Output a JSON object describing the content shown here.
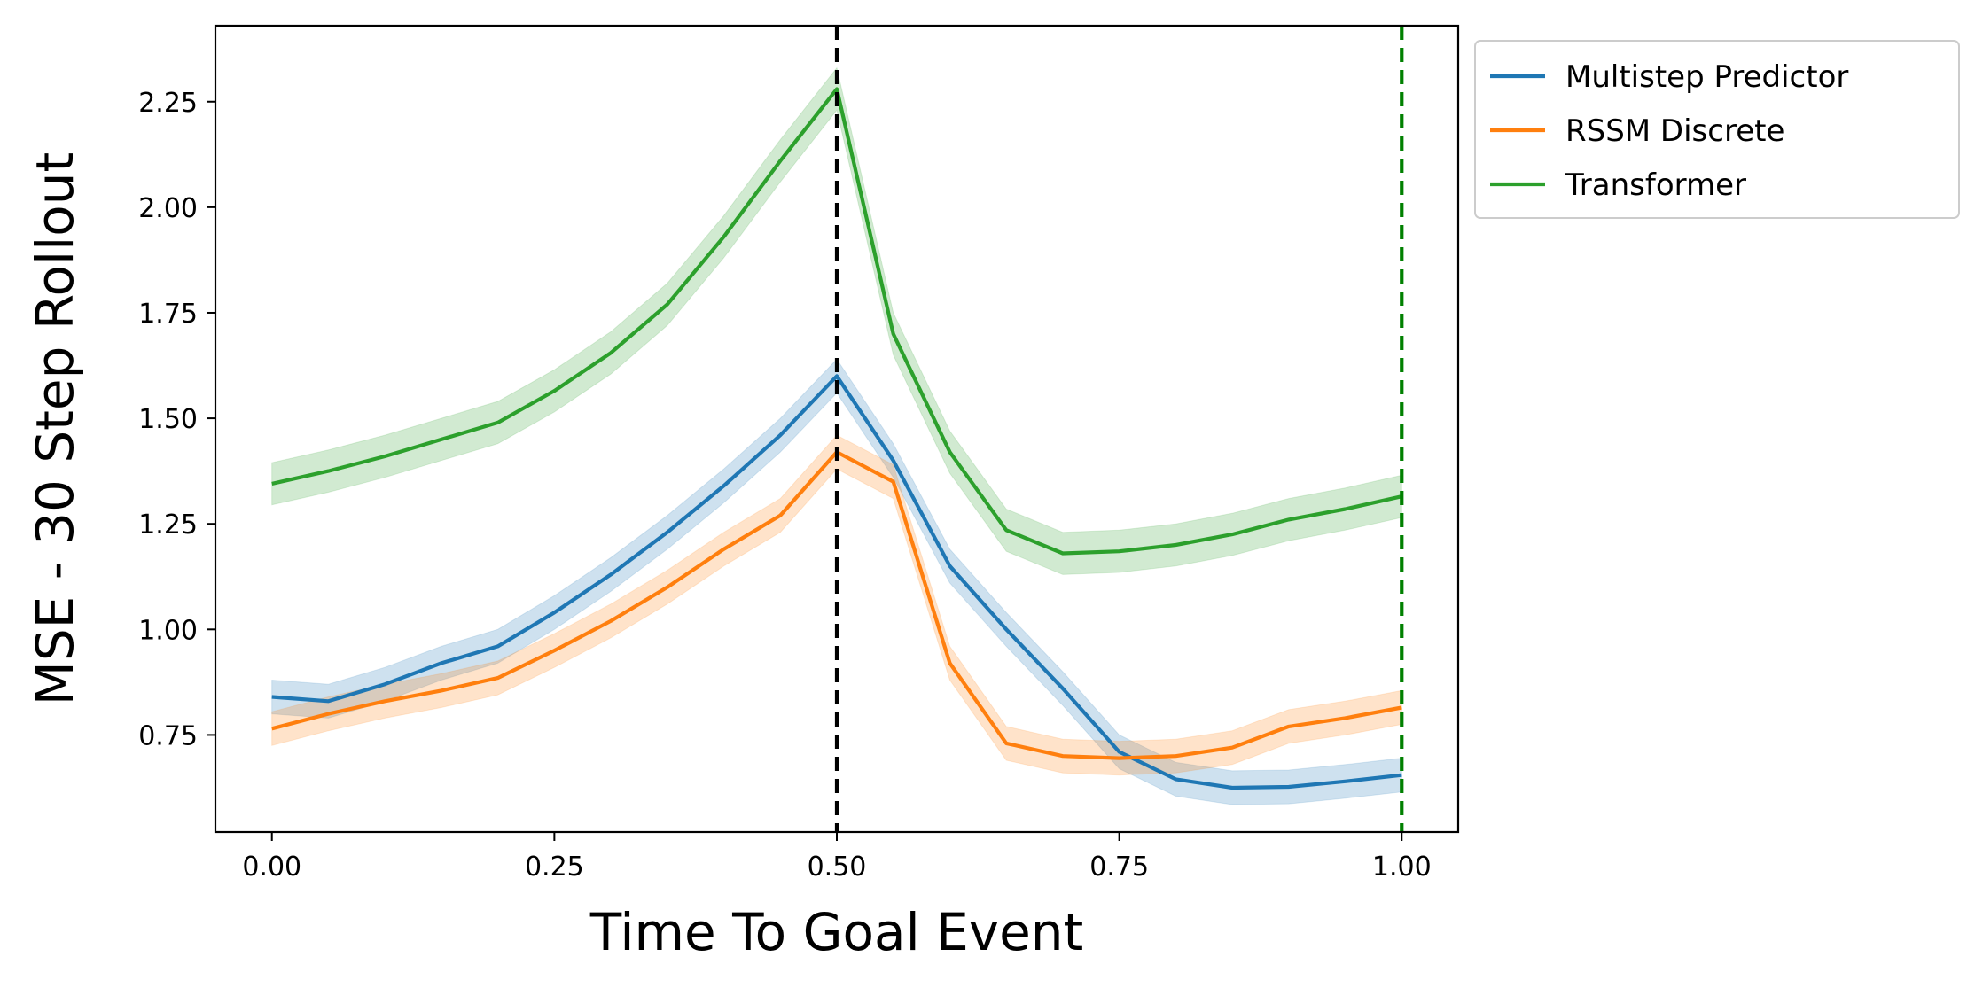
{
  "chart_data": {
    "type": "line",
    "title": "",
    "xlabel": "Time To Goal Event",
    "ylabel": "MSE - 30 Step Rollout",
    "xlim": [
      -0.05,
      1.05
    ],
    "ylim": [
      0.52,
      2.43
    ],
    "x_ticks": [
      0.0,
      0.25,
      0.5,
      0.75,
      1.0
    ],
    "x_tick_labels": [
      "0.00",
      "0.25",
      "0.50",
      "0.75",
      "1.00"
    ],
    "y_ticks": [
      0.75,
      1.0,
      1.25,
      1.5,
      1.75,
      2.0,
      2.25
    ],
    "y_tick_labels": [
      "0.75",
      "1.00",
      "1.25",
      "1.50",
      "1.75",
      "2.00",
      "2.25"
    ],
    "grid": false,
    "legend_position": "outside-upper-right",
    "x": [
      0.0,
      0.05,
      0.1,
      0.15,
      0.2,
      0.25,
      0.3,
      0.35,
      0.4,
      0.45,
      0.5,
      0.55,
      0.6,
      0.65,
      0.7,
      0.75,
      0.8,
      0.85,
      0.9,
      0.95,
      1.0
    ],
    "series": [
      {
        "name": "Multistep Predictor",
        "color": "#1f77b4",
        "values": [
          0.84,
          0.83,
          0.87,
          0.92,
          0.96,
          1.04,
          1.13,
          1.23,
          1.34,
          1.46,
          1.6,
          1.4,
          1.15,
          1.0,
          0.86,
          0.71,
          0.645,
          0.625,
          0.627,
          0.64,
          0.655
        ],
        "band": 0.04
      },
      {
        "name": "RSSM Discrete",
        "color": "#ff7f0e",
        "values": [
          0.765,
          0.8,
          0.83,
          0.855,
          0.885,
          0.95,
          1.02,
          1.1,
          1.19,
          1.27,
          1.42,
          1.35,
          0.92,
          0.73,
          0.7,
          0.695,
          0.7,
          0.72,
          0.77,
          0.79,
          0.815
        ],
        "band": 0.04
      },
      {
        "name": "Transformer",
        "color": "#2ca02c",
        "values": [
          1.345,
          1.375,
          1.41,
          1.45,
          1.49,
          1.565,
          1.655,
          1.77,
          1.93,
          2.11,
          2.28,
          1.7,
          1.42,
          1.235,
          1.18,
          1.185,
          1.2,
          1.225,
          1.26,
          1.285,
          1.315
        ],
        "band": 0.05
      }
    ],
    "vlines": [
      {
        "x": 0.5,
        "color": "#000000",
        "style": "dashed"
      },
      {
        "x": 1.0,
        "color": "#008000",
        "style": "dashed"
      }
    ]
  }
}
